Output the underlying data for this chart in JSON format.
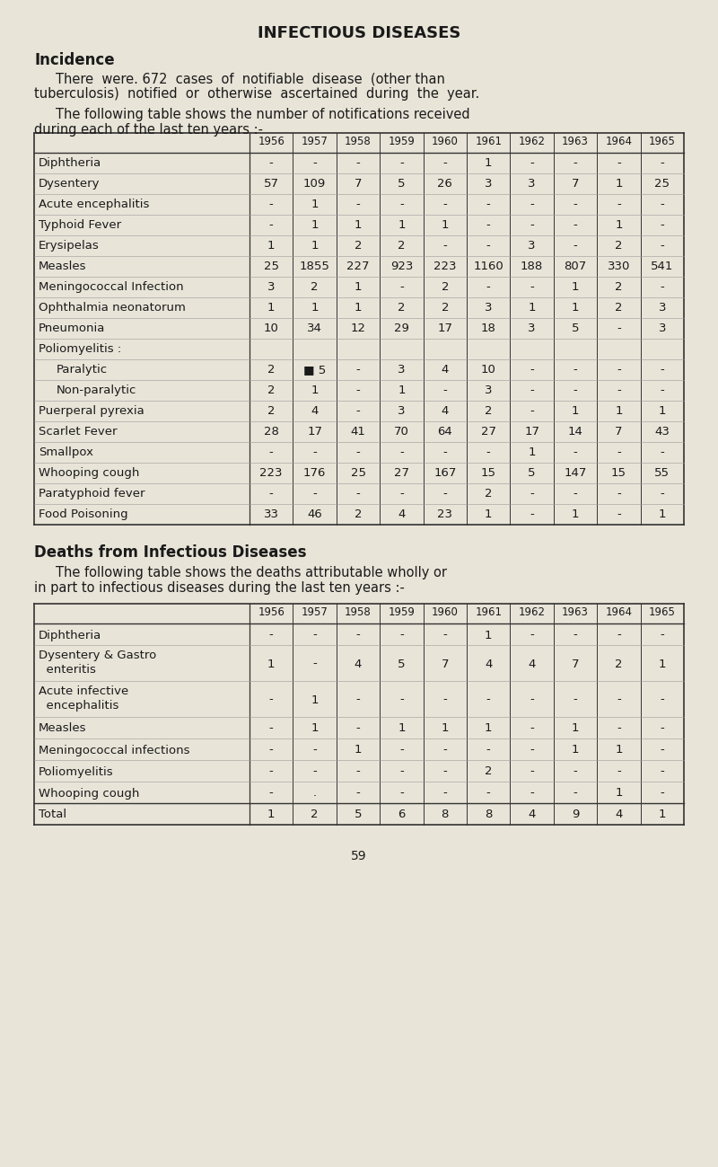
{
  "bg_color": "#e8e4d8",
  "text_color": "#1a1a1a",
  "title": "INFECTIOUS DISEASES",
  "section1_heading": "Incidence",
  "table1_years": [
    "1956",
    "1957",
    "1958",
    "1959",
    "1960",
    "1961",
    "1962",
    "1963",
    "1964",
    "1965"
  ],
  "table1_rows": [
    [
      "Diphtheria",
      "-",
      "-",
      "-",
      "-",
      "-",
      "1",
      "-",
      "-",
      "-",
      "-"
    ],
    [
      "Dysentery",
      "57",
      "109",
      "7",
      "5",
      "26",
      "3",
      "3",
      "7",
      "1",
      "25"
    ],
    [
      "Acute encephalitis",
      "-",
      "1",
      "-",
      "-",
      "-",
      "-",
      "-",
      "-",
      "-",
      "-"
    ],
    [
      "Typhoid Fever",
      "-",
      "1",
      "1",
      "1",
      "1",
      "-",
      "-",
      "-",
      "1",
      "-"
    ],
    [
      "Erysipelas",
      "1",
      "1",
      "2",
      "2",
      "-",
      "-",
      "3",
      "-",
      "2",
      "-"
    ],
    [
      "Measles",
      "25",
      "1855",
      "227",
      "923",
      "223",
      "1160",
      "188",
      "807",
      "330",
      "541"
    ],
    [
      "Meningococcal Infection",
      "3",
      "2",
      "1",
      "-",
      "2",
      "-",
      "-",
      "1",
      "2",
      "-"
    ],
    [
      "Ophthalmia neonatorum",
      "1",
      "1",
      "1",
      "2",
      "2",
      "3",
      "1",
      "1",
      "2",
      "3"
    ],
    [
      "Pneumonia",
      "10",
      "34",
      "12",
      "29",
      "17",
      "18",
      "3",
      "5",
      "-",
      "3"
    ],
    [
      "Poliomyelitis :",
      "",
      "",
      "",
      "",
      "",
      "",
      "",
      "",
      "",
      ""
    ],
    [
      "    Paralytic",
      "2",
      "■ 5",
      "-",
      "3",
      "4",
      "10",
      "-",
      "-",
      "-",
      "-"
    ],
    [
      "    Non-paralytic",
      "2",
      "1",
      "-",
      "1",
      "-",
      "3",
      "-",
      "-",
      "-",
      "-"
    ],
    [
      "Puerperal pyrexia",
      "2",
      "4",
      "-",
      "3",
      "4",
      "2",
      "-",
      "1",
      "1",
      "1"
    ],
    [
      "Scarlet Fever",
      "28",
      "17",
      "41",
      "70",
      "64",
      "27",
      "17",
      "14",
      "7",
      "43"
    ],
    [
      "Smallpox",
      "-",
      "-",
      "-",
      "-",
      "-",
      "-",
      "1",
      "-",
      "-",
      "-"
    ],
    [
      "Whooping cough",
      "223",
      "176",
      "25",
      "27",
      "167",
      "15",
      "5",
      "147",
      "15",
      "55"
    ],
    [
      "Paratyphoid fever",
      "-",
      "-",
      "-",
      "-",
      "-",
      "2",
      "-",
      "-",
      "-",
      "-"
    ],
    [
      "Food Poisoning",
      "33",
      "46",
      "2",
      "4",
      "23",
      "1",
      "-",
      "1",
      "-",
      "1"
    ]
  ],
  "section2_heading": "Deaths from Infectious Diseases",
  "table2_years": [
    "1956",
    "1957",
    "1958",
    "1959",
    "1960",
    "1961",
    "1962",
    "1963",
    "1964",
    "1965"
  ],
  "table2_rows": [
    [
      "Diphtheria",
      "-",
      "-",
      "-",
      "-",
      "-",
      "1",
      "-",
      "-",
      "-",
      "-"
    ],
    [
      "Dysentery & Gastro\nenteritis",
      "1",
      "-",
      "4",
      "5",
      "7",
      "4",
      "4",
      "7",
      "2",
      "1"
    ],
    [
      "Acute infective\nencephalitis",
      "-",
      "1",
      "-",
      "-",
      "-",
      "-",
      "-",
      "-",
      "-",
      "-"
    ],
    [
      "Measles",
      "-",
      "1",
      "-",
      "1",
      "1",
      "1",
      "-",
      "1",
      "-",
      "-"
    ],
    [
      "Meningococcal infections",
      "-",
      "-",
      "1",
      "-",
      "-",
      "-",
      "-",
      "1",
      "1",
      "-"
    ],
    [
      "Poliomyelitis",
      "-",
      "-",
      "-",
      "-",
      "-",
      "2",
      "-",
      "-",
      "-",
      "-"
    ],
    [
      "Whooping cough",
      "-",
      ".",
      "-",
      "-",
      "-",
      "-",
      "-",
      "-",
      "1",
      "-"
    ]
  ],
  "table2_total": [
    "Total",
    "1",
    "2",
    "5",
    "6",
    "8",
    "8",
    "4",
    "9",
    "4",
    "1"
  ],
  "page_number": "59"
}
